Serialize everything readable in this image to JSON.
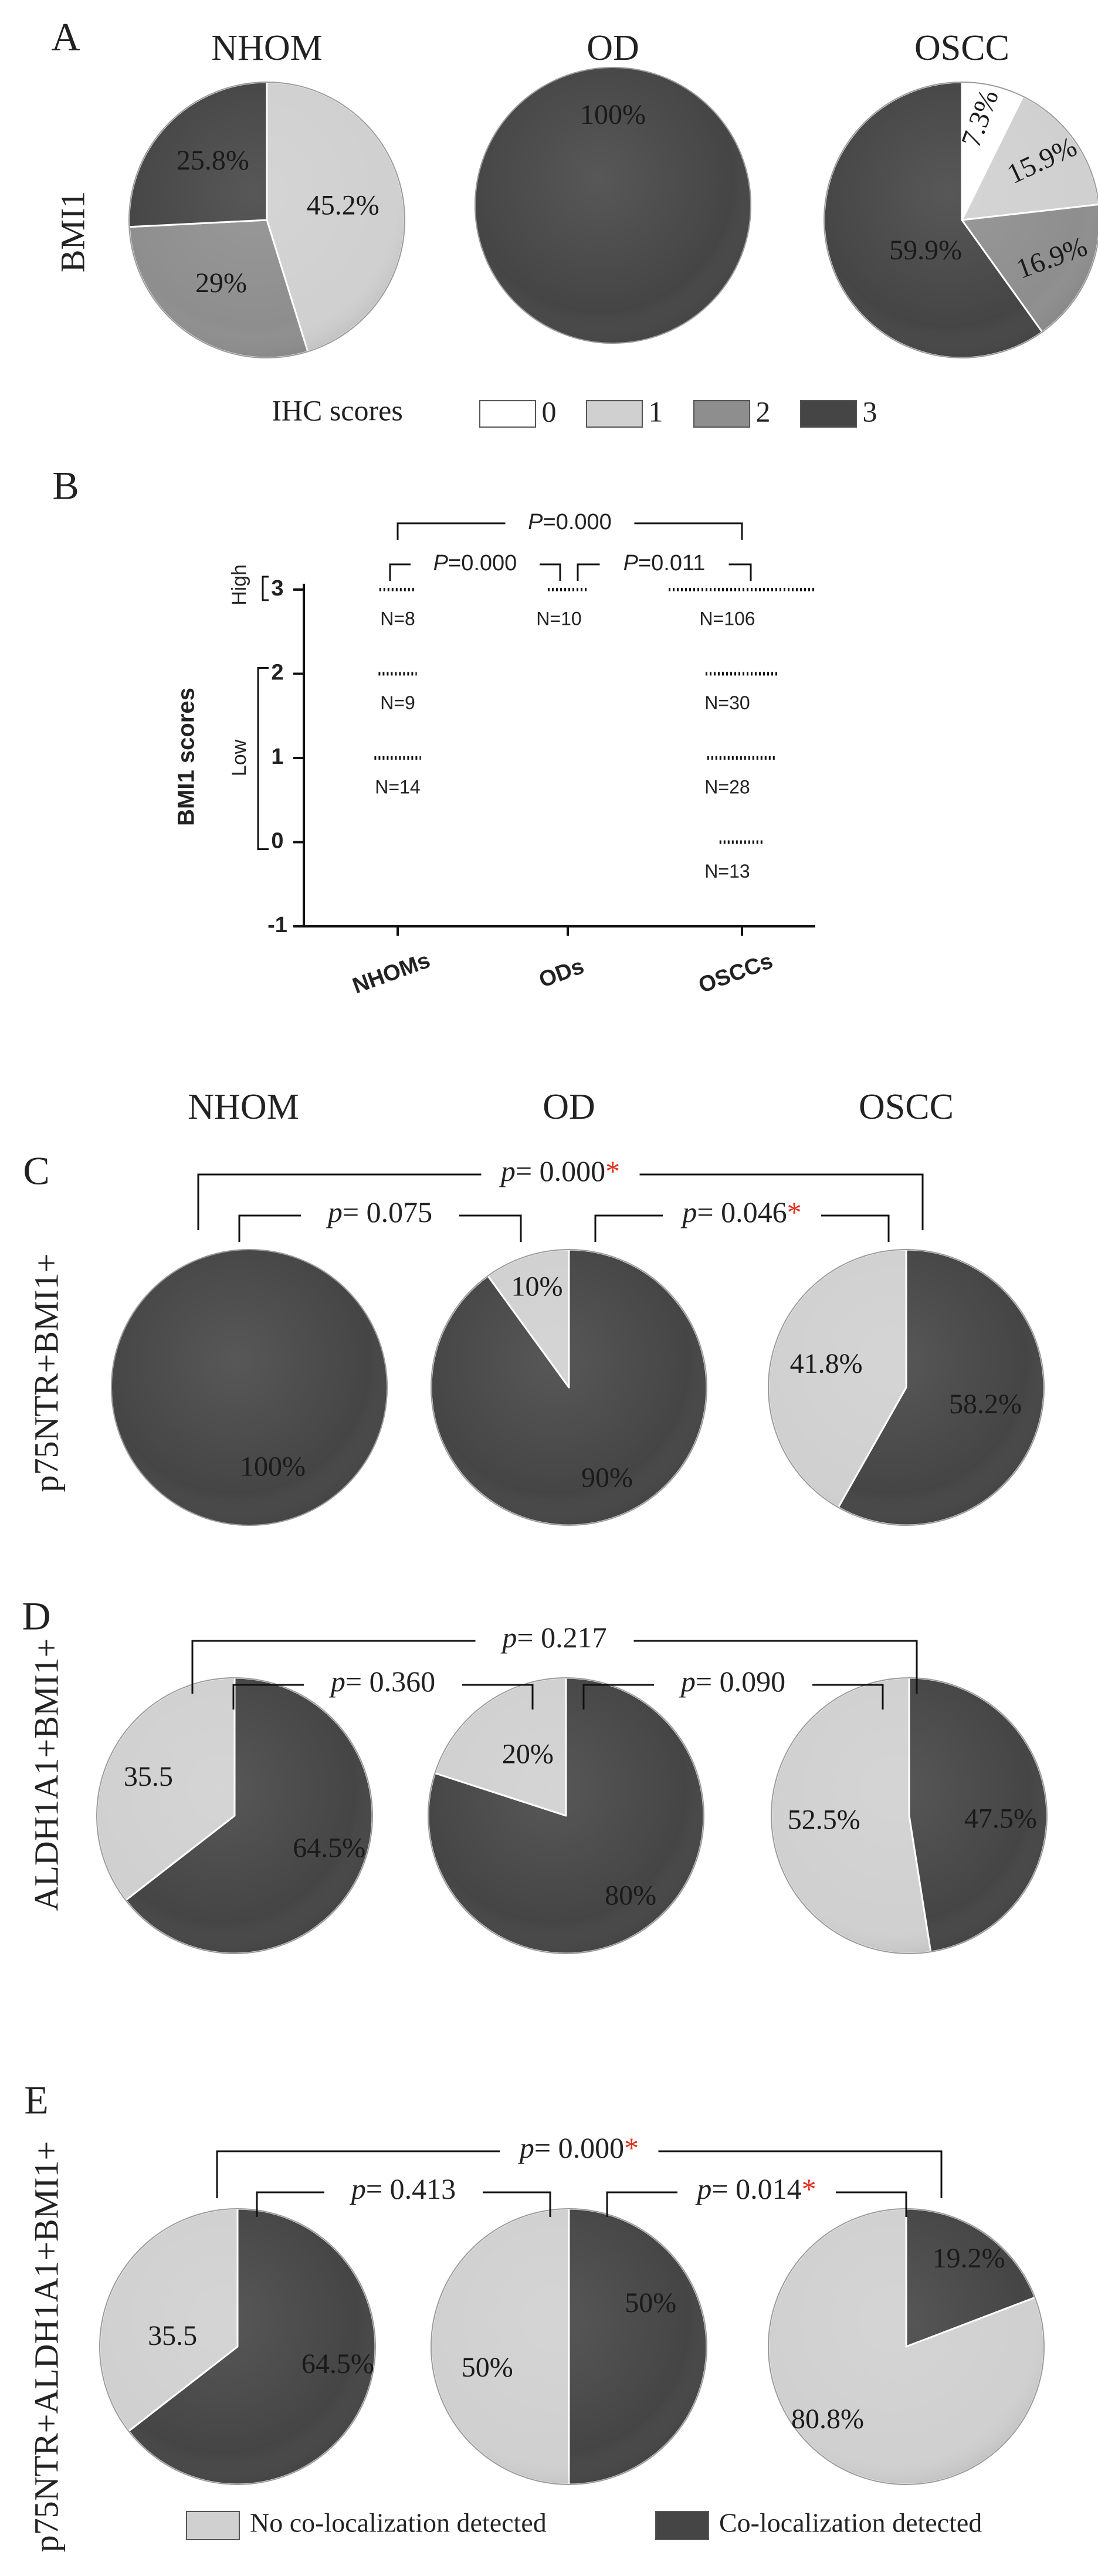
{
  "colors": {
    "score0": "#ffffff",
    "score1": "#d0d0d0",
    "score2": "#8e8e8e",
    "score3": "#454545",
    "no_coloc": "#d0d0d0",
    "coloc": "#454545",
    "outline": "#9a9a9a",
    "star": "#e03020",
    "text": "#222222"
  },
  "chart_data": [
    {
      "panel": "A",
      "type": "pie",
      "row_label": "BMI1",
      "legend_title": "IHC scores",
      "legend": [
        {
          "label": "0",
          "color_key": "score0"
        },
        {
          "label": "1",
          "color_key": "score1"
        },
        {
          "label": "2",
          "color_key": "score2"
        },
        {
          "label": "3",
          "color_key": "score3"
        }
      ],
      "pies": [
        {
          "title": "NHOM",
          "slices": [
            {
              "score": "1",
              "value": 45.2,
              "label": "45.2%"
            },
            {
              "score": "2",
              "value": 29.0,
              "label": "29%"
            },
            {
              "score": "3",
              "value": 25.8,
              "label": "25.8%"
            }
          ]
        },
        {
          "title": "OD",
          "slices": [
            {
              "score": "3",
              "value": 100,
              "label": "100%"
            }
          ]
        },
        {
          "title": "OSCC",
          "slices": [
            {
              "score": "0",
              "value": 7.3,
              "label": "7.3%"
            },
            {
              "score": "1",
              "value": 15.9,
              "label": "15.9%"
            },
            {
              "score": "2",
              "value": 16.9,
              "label": "16.9%"
            },
            {
              "score": "3",
              "value": 59.9,
              "label": "59.9%"
            }
          ]
        }
      ]
    },
    {
      "panel": "B",
      "type": "scatter",
      "ylabel": "BMI1 scores",
      "ylim": [
        -1,
        3
      ],
      "yticks": [
        "-1",
        "0",
        "1",
        "2",
        "3"
      ],
      "categories": [
        "NHOMs",
        "ODs",
        "OSCCs"
      ],
      "brackets": [
        {
          "label": "High",
          "range": [
            3,
            3
          ]
        },
        {
          "label": "Low",
          "range": [
            0,
            2
          ]
        }
      ],
      "groups": [
        {
          "category": "NHOMs",
          "points": [
            {
              "y": 3,
              "n": 8,
              "label": "N=8"
            },
            {
              "y": 2,
              "n": 9,
              "label": "N=9"
            },
            {
              "y": 1,
              "n": 14,
              "label": "N=14"
            }
          ]
        },
        {
          "category": "ODs",
          "points": [
            {
              "y": 3,
              "n": 10,
              "label": "N=10"
            }
          ]
        },
        {
          "category": "OSCCs",
          "points": [
            {
              "y": 3,
              "n": 106,
              "label": "N=106"
            },
            {
              "y": 2,
              "n": 30,
              "label": "N=30"
            },
            {
              "y": 1,
              "n": 28,
              "label": "N=28"
            },
            {
              "y": 0,
              "n": 13,
              "label": "N=13"
            }
          ]
        }
      ],
      "comparisons": [
        {
          "pair": [
            "NHOMs",
            "OSCCs"
          ],
          "p": "0.000",
          "sig": false
        },
        {
          "pair": [
            "NHOMs",
            "ODs"
          ],
          "p": "0.000",
          "sig": false
        },
        {
          "pair": [
            "ODs",
            "OSCCs"
          ],
          "p": "0.011",
          "sig": false
        }
      ]
    },
    {
      "panel": "C",
      "type": "pie",
      "row_label": "p75NTR+BMI1+",
      "column_titles": [
        "NHOM",
        "OD",
        "OSCC"
      ],
      "pies": [
        {
          "title": "NHOM",
          "slices": [
            {
              "category": "coloc",
              "value": 100,
              "label": "100%"
            }
          ]
        },
        {
          "title": "OD",
          "slices": [
            {
              "category": "coloc",
              "value": 90,
              "label": "90%"
            },
            {
              "category": "no_coloc",
              "value": 10,
              "label": "10%"
            }
          ]
        },
        {
          "title": "OSCC",
          "slices": [
            {
              "category": "coloc",
              "value": 58.2,
              "label": "58.2%"
            },
            {
              "category": "no_coloc",
              "value": 41.8,
              "label": "41.8%"
            }
          ]
        }
      ],
      "comparisons": [
        {
          "pair": [
            "NHOM",
            "OSCC"
          ],
          "p": "0.000",
          "sig": true
        },
        {
          "pair": [
            "NHOM",
            "OD"
          ],
          "p": "0.075",
          "sig": false
        },
        {
          "pair": [
            "OD",
            "OSCC"
          ],
          "p": "0.046",
          "sig": true
        }
      ]
    },
    {
      "panel": "D",
      "type": "pie",
      "row_label": "ALDH1A1+BMI1+",
      "pies": [
        {
          "title": "NHOM",
          "slices": [
            {
              "category": "coloc",
              "value": 64.5,
              "label": "64.5%"
            },
            {
              "category": "no_coloc",
              "value": 35.5,
              "label": "35.5"
            }
          ]
        },
        {
          "title": "OD",
          "slices": [
            {
              "category": "coloc",
              "value": 80,
              "label": "80%"
            },
            {
              "category": "no_coloc",
              "value": 20,
              "label": "20%"
            }
          ]
        },
        {
          "title": "OSCC",
          "slices": [
            {
              "category": "coloc",
              "value": 47.5,
              "label": "47.5%"
            },
            {
              "category": "no_coloc",
              "value": 52.5,
              "label": "52.5%"
            }
          ]
        }
      ],
      "comparisons": [
        {
          "pair": [
            "NHOM",
            "OSCC"
          ],
          "p": "0.217",
          "sig": false
        },
        {
          "pair": [
            "NHOM",
            "OD"
          ],
          "p": "0.360",
          "sig": false
        },
        {
          "pair": [
            "OD",
            "OSCC"
          ],
          "p": "0.090",
          "sig": false
        }
      ]
    },
    {
      "panel": "E",
      "type": "pie",
      "row_label": "p75NTR+ALDH1A1+BMI1+",
      "pies": [
        {
          "title": "NHOM",
          "slices": [
            {
              "category": "coloc",
              "value": 64.5,
              "label": "64.5%"
            },
            {
              "category": "no_coloc",
              "value": 35.5,
              "label": "35.5"
            }
          ]
        },
        {
          "title": "OD",
          "slices": [
            {
              "category": "coloc",
              "value": 50,
              "label": "50%"
            },
            {
              "category": "no_coloc",
              "value": 50,
              "label": "50%"
            }
          ]
        },
        {
          "title": "OSCC",
          "slices": [
            {
              "category": "coloc",
              "value": 19.2,
              "label": "19.2%"
            },
            {
              "category": "no_coloc",
              "value": 80.8,
              "label": "80.8%"
            }
          ]
        }
      ],
      "comparisons": [
        {
          "pair": [
            "NHOM",
            "OSCC"
          ],
          "p": "0.000",
          "sig": true
        },
        {
          "pair": [
            "NHOM",
            "OD"
          ],
          "p": "0.413",
          "sig": false
        },
        {
          "pair": [
            "OD",
            "OSCC"
          ],
          "p": "0.014",
          "sig": true
        }
      ],
      "legend": [
        {
          "label": "No co-localization detected",
          "color_key": "no_coloc"
        },
        {
          "label": "Co-localization detected",
          "color_key": "coloc"
        }
      ]
    }
  ]
}
